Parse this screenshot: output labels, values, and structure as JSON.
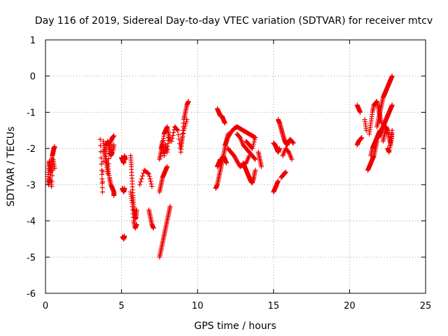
{
  "chart_data": {
    "type": "scatter",
    "title": "Day 116 of 2019, Sidereal Day-to-day VTEC variation (SDTVAR) for receiver mtcv",
    "xlabel": "GPS time / hours",
    "ylabel": "SDTVAR / TECUs",
    "xlim": [
      0,
      25
    ],
    "ylim": [
      -6,
      1
    ],
    "xticks": [
      0,
      5,
      10,
      15,
      20,
      25
    ],
    "yticks": [
      -6,
      -5,
      -4,
      -3,
      -2,
      -1,
      0,
      1
    ],
    "grid": true,
    "marker": "plus",
    "color": "#ee0000",
    "segments": [
      {
        "x": [
          0.15,
          0.2,
          0.25,
          0.3,
          0.35,
          0.4,
          0.45,
          0.5,
          0.55,
          0.6
        ],
        "y": [
          -2.9,
          -2.6,
          -2.35,
          -2.5,
          -2.7,
          -2.4,
          -2.2,
          -2.1,
          -2.0,
          -1.95
        ]
      },
      {
        "x": [
          0.2,
          0.3,
          0.4,
          0.5,
          0.6
        ],
        "y": [
          -3.0,
          -2.8,
          -3.05,
          -2.3,
          -2.55
        ]
      },
      {
        "x": [
          3.6,
          3.7,
          3.75,
          3.8,
          3.9,
          4.0,
          4.1,
          4.2,
          4.3,
          4.4,
          4.5
        ],
        "y": [
          -1.75,
          -2.6,
          -3.2,
          -1.8,
          -2.1,
          -2.4,
          -2.7,
          -2.0,
          -1.8,
          -1.7,
          -1.65
        ]
      },
      {
        "x": [
          4.0,
          4.1,
          4.2,
          4.3,
          4.4,
          4.5,
          4.5
        ],
        "y": [
          -2.3,
          -2.5,
          -2.8,
          -3.0,
          -3.1,
          -3.2,
          -3.3
        ]
      },
      {
        "x": [
          3.9,
          4.0,
          4.1,
          4.2,
          4.3,
          4.4,
          4.5
        ],
        "y": [
          -2.2,
          -1.9,
          -1.8,
          -2.0,
          -2.2,
          -2.1,
          -1.9
        ]
      },
      {
        "x": [
          5.0,
          5.05,
          5.1,
          5.15,
          5.2,
          5.25
        ],
        "y": [
          -2.25,
          -2.3,
          -2.35,
          -2.4,
          -2.2,
          -2.3
        ]
      },
      {
        "x": [
          5.05,
          5.1,
          5.15,
          5.2
        ],
        "y": [
          -3.1,
          -3.15,
          -3.2,
          -3.1
        ]
      },
      {
        "x": [
          5.05,
          5.1,
          5.15,
          5.2
        ],
        "y": [
          -4.45,
          -4.45,
          -4.5,
          -4.42
        ]
      },
      {
        "x": [
          5.6,
          5.65,
          5.7,
          5.75,
          5.8,
          5.85,
          5.9,
          5.95,
          6.0
        ],
        "y": [
          -2.2,
          -2.5,
          -2.9,
          -3.3,
          -3.6,
          -3.8,
          -3.95,
          -3.9,
          -3.7
        ]
      },
      {
        "x": [
          5.6,
          5.7,
          5.8,
          5.9,
          6.0
        ],
        "y": [
          -3.2,
          -3.5,
          -4.0,
          -4.2,
          -4.1
        ]
      },
      {
        "x": [
          6.2,
          6.5,
          6.8,
          7.0
        ],
        "y": [
          -3.0,
          -2.6,
          -2.7,
          -3.05
        ]
      },
      {
        "x": [
          6.8,
          6.9,
          7.0,
          7.1
        ],
        "y": [
          -3.7,
          -3.9,
          -4.1,
          -4.2
        ]
      },
      {
        "x": [
          7.5,
          7.6,
          7.7,
          7.8,
          7.9,
          8.0,
          8.1,
          8.2
        ],
        "y": [
          -5.0,
          -4.8,
          -4.6,
          -4.4,
          -4.2,
          -4.0,
          -3.8,
          -3.6
        ]
      },
      {
        "x": [
          7.5,
          7.6,
          7.7,
          7.8,
          7.9,
          8.0
        ],
        "y": [
          -3.2,
          -3.0,
          -2.8,
          -2.7,
          -2.6,
          -2.5
        ]
      },
      {
        "x": [
          7.5,
          7.6,
          7.7,
          7.8,
          7.9,
          8.0,
          8.1,
          8.2
        ],
        "y": [
          -2.3,
          -2.1,
          -1.9,
          -1.6,
          -1.5,
          -1.4,
          -1.6,
          -1.8
        ]
      },
      {
        "x": [
          7.6,
          7.7,
          7.8,
          7.9,
          8.0,
          8.1
        ],
        "y": [
          -2.0,
          -1.8,
          -2.2,
          -1.9,
          -2.1,
          -1.7
        ]
      },
      {
        "x": [
          8.3,
          8.5,
          8.7,
          8.9,
          9.0,
          9.1,
          9.2,
          9.3,
          9.4
        ],
        "y": [
          -1.8,
          -1.4,
          -1.5,
          -2.1,
          -1.7,
          -1.2,
          -1.0,
          -0.8,
          -0.7
        ]
      },
      {
        "x": [
          8.9,
          9.1,
          9.3
        ],
        "y": [
          -1.9,
          -1.5,
          -1.2
        ]
      },
      {
        "x": [
          11.2,
          11.3,
          11.4,
          11.5,
          11.6,
          11.7,
          11.8,
          11.9,
          12.0
        ],
        "y": [
          -3.1,
          -3.0,
          -2.8,
          -2.6,
          -2.4,
          -2.2,
          -2.0,
          -1.8,
          -1.6
        ]
      },
      {
        "x": [
          11.3,
          11.4,
          11.5,
          11.6,
          11.7,
          11.8
        ],
        "y": [
          -0.9,
          -1.0,
          -1.1,
          -1.1,
          -1.2,
          -1.3
        ]
      },
      {
        "x": [
          11.3,
          11.4,
          11.5,
          11.6,
          11.7,
          11.8,
          11.9
        ],
        "y": [
          -2.5,
          -2.4,
          -2.3,
          -2.35,
          -2.2,
          -2.3,
          -2.4
        ]
      },
      {
        "x": [
          11.8,
          12.0,
          12.2,
          12.4,
          12.6,
          12.8,
          13.0,
          13.2,
          13.4,
          13.6,
          13.8
        ],
        "y": [
          -1.9,
          -1.7,
          -1.55,
          -1.45,
          -1.4,
          -1.45,
          -1.5,
          -1.55,
          -1.6,
          -1.65,
          -1.7
        ]
      },
      {
        "x": [
          12.0,
          12.2,
          12.4,
          12.6,
          12.8,
          13.0,
          13.2,
          13.4
        ],
        "y": [
          -2.0,
          -2.1,
          -2.2,
          -2.35,
          -2.5,
          -2.45,
          -2.4,
          -2.2
        ]
      },
      {
        "x": [
          12.6,
          12.8,
          13.0,
          13.2,
          13.4,
          13.6,
          13.8
        ],
        "y": [
          -1.6,
          -1.7,
          -1.9,
          -2.0,
          -2.1,
          -2.2,
          -2.3
        ]
      },
      {
        "x": [
          13.0,
          13.1,
          13.2,
          13.3,
          13.4,
          13.5,
          13.6,
          13.7,
          13.8
        ],
        "y": [
          -2.4,
          -2.5,
          -2.6,
          -2.7,
          -2.8,
          -2.9,
          -2.95,
          -2.8,
          -2.6
        ]
      },
      {
        "x": [
          13.2,
          13.4,
          13.6,
          13.8
        ],
        "y": [
          -1.8,
          -1.9,
          -2.0,
          -1.7
        ]
      },
      {
        "x": [
          14.0,
          14.1,
          14.2
        ],
        "y": [
          -2.1,
          -2.3,
          -2.5
        ]
      },
      {
        "x": [
          15.0,
          15.1,
          15.2,
          15.3
        ],
        "y": [
          -3.2,
          -3.1,
          -3.0,
          -2.9
        ]
      },
      {
        "x": [
          15.0,
          15.1,
          15.2,
          15.3,
          15.4
        ],
        "y": [
          -1.85,
          -1.9,
          -2.0,
          -2.1,
          -2.0
        ]
      },
      {
        "x": [
          15.3,
          15.4,
          15.5,
          15.6,
          15.7,
          15.8,
          15.9,
          16.0,
          16.1,
          16.2,
          16.3
        ],
        "y": [
          -1.2,
          -1.3,
          -1.45,
          -1.6,
          -1.75,
          -1.85,
          -1.9,
          -1.8,
          -1.75,
          -1.8,
          -1.85
        ]
      },
      {
        "x": [
          15.5,
          15.6,
          15.7,
          15.8
        ],
        "y": [
          -2.8,
          -2.75,
          -2.7,
          -2.65
        ]
      },
      {
        "x": [
          15.6,
          15.8,
          16.0,
          16.2
        ],
        "y": [
          -2.2,
          -2.0,
          -2.1,
          -2.3
        ]
      },
      {
        "x": [
          20.5,
          20.6,
          20.7
        ],
        "y": [
          -0.8,
          -0.9,
          -1.0
        ]
      },
      {
        "x": [
          20.5,
          20.6,
          20.7,
          20.8
        ],
        "y": [
          -1.9,
          -1.8,
          -1.75,
          -1.7
        ]
      },
      {
        "x": [
          21.0,
          21.1
        ],
        "y": [
          -1.2,
          -1.5
        ]
      },
      {
        "x": [
          21.2,
          21.3,
          21.4,
          21.5,
          21.6,
          21.7,
          21.8
        ],
        "y": [
          -2.6,
          -2.5,
          -2.4,
          -2.3,
          -2.2,
          -2.0,
          -1.8
        ]
      },
      {
        "x": [
          21.3,
          21.4,
          21.5,
          21.6,
          21.7,
          21.8,
          21.9,
          22.0,
          22.1
        ],
        "y": [
          -1.6,
          -1.3,
          -1.0,
          -0.8,
          -0.75,
          -0.7,
          -0.9,
          -1.1,
          -1.3
        ]
      },
      {
        "x": [
          21.4,
          21.5,
          21.6,
          21.7,
          21.8,
          21.9,
          22.0
        ],
        "y": [
          -2.2,
          -2.0,
          -1.9,
          -1.8,
          -1.7,
          -1.6,
          -1.5
        ]
      },
      {
        "x": [
          21.8,
          21.9,
          22.0,
          22.1,
          22.2,
          22.3,
          22.4,
          22.5,
          22.6,
          22.7,
          22.8
        ],
        "y": [
          -1.4,
          -1.2,
          -1.0,
          -0.8,
          -0.6,
          -0.5,
          -0.4,
          -0.3,
          -0.2,
          -0.1,
          0.0
        ]
      },
      {
        "x": [
          21.9,
          22.0,
          22.1,
          22.2,
          22.3,
          22.4,
          22.5,
          22.6,
          22.7,
          22.8
        ],
        "y": [
          -1.7,
          -1.6,
          -1.5,
          -1.4,
          -1.3,
          -1.2,
          -1.1,
          -1.0,
          -0.9,
          -0.8
        ]
      },
      {
        "x": [
          22.2,
          22.3,
          22.4,
          22.5,
          22.6,
          22.7,
          22.8
        ],
        "y": [
          -1.8,
          -1.6,
          -1.4,
          -1.5,
          -1.7,
          -1.9,
          -1.6
        ]
      },
      {
        "x": [
          22.5,
          22.6,
          22.7,
          22.8
        ],
        "y": [
          -2.0,
          -2.1,
          -1.8,
          -1.5
        ]
      }
    ]
  }
}
